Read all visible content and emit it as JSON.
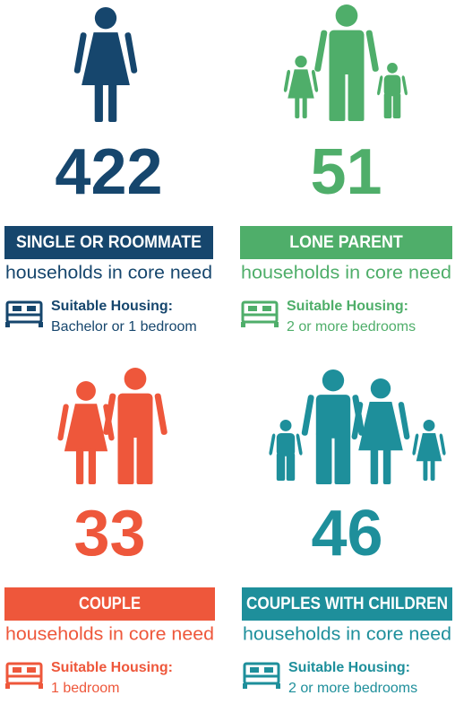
{
  "panels": [
    {
      "number": 422,
      "label": "SINGLE OR ROOMMATE",
      "subtitle": "households in core need",
      "housing_title": "Suitable Housing:",
      "housing_detail": "Bachelor or 1 bedroom",
      "color": "#16466d"
    },
    {
      "number": 51,
      "label": "LONE PARENT",
      "subtitle": "households in core need",
      "housing_title": "Suitable Housing:",
      "housing_detail": "2 or more bedrooms",
      "color": "#4fae6a"
    },
    {
      "number": 33,
      "label": "COUPLE",
      "subtitle": "households in core need",
      "housing_title": "Suitable Housing:",
      "housing_detail": "1 bedroom",
      "color": "#ee573b"
    },
    {
      "number": 46,
      "label": "COUPLES WITH CHILDREN",
      "subtitle": "households in core need",
      "housing_title": "Suitable Housing:",
      "housing_detail": "2 or more bedrooms",
      "color": "#1e8f9b"
    }
  ]
}
